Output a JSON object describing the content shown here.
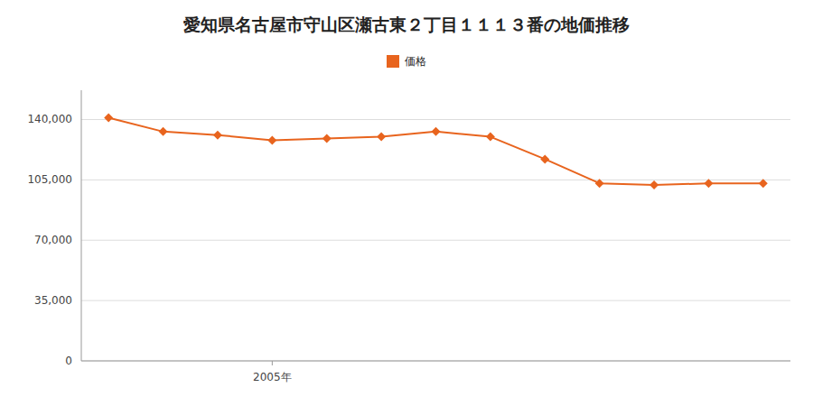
{
  "chart_data": {
    "type": "line",
    "title": "愛知県名古屋市守山区瀬古東２丁目１１１３番の地価推移",
    "x": [
      2002,
      2003,
      2004,
      2005,
      2006,
      2007,
      2008,
      2009,
      2010,
      2011,
      2012,
      2013,
      2014
    ],
    "series": [
      {
        "name": "価格",
        "color": "#E8641E",
        "marker": "diamond",
        "values": [
          141000,
          133000,
          131000,
          128000,
          129000,
          130000,
          133000,
          130000,
          117000,
          103000,
          102000,
          103000,
          103000
        ]
      }
    ],
    "xlim": [
      2001.5,
      2014.5
    ],
    "xticks": [
      {
        "value": 2005,
        "label": "2005年"
      }
    ],
    "ylim": [
      0,
      157000
    ],
    "yticks": [
      0,
      {
        "value": 35000,
        "label": "35,000"
      },
      {
        "value": 70000,
        "label": "70,000"
      },
      {
        "value": 105000,
        "label": "105,000"
      },
      {
        "value": 140000,
        "label": "140,000"
      }
    ],
    "grid": true,
    "legend": "top"
  }
}
